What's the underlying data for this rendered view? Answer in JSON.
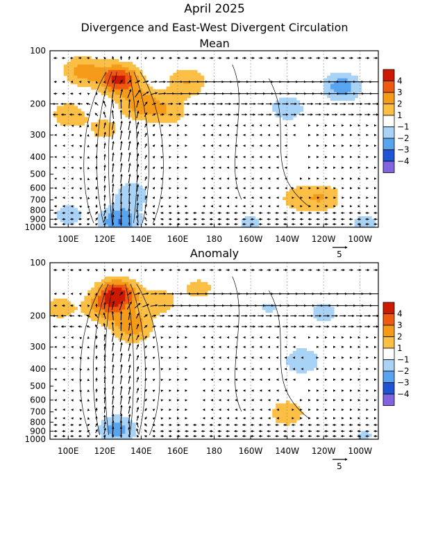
{
  "header": {
    "title": "April 2025",
    "subtitle": "Divergence and East-West Divergent Circulation"
  },
  "colorbar": {
    "labels": [
      "4",
      "3",
      "2",
      "1",
      "−1",
      "−2",
      "−3",
      "−4"
    ],
    "colors": [
      "#cc1a00",
      "#ee5a10",
      "#f59b1a",
      "#fbbf45",
      "#ffffff",
      "#a8d3f7",
      "#59a4ef",
      "#1d55d6",
      "#1a1aaa",
      "#7f66e0"
    ]
  },
  "vector_reference": {
    "label": "5"
  },
  "chart_data": [
    {
      "type": "contour",
      "title": "Mean",
      "x_tick_labels": [
        "100E",
        "120E",
        "140E",
        "160E",
        "180",
        "160W",
        "140W",
        "120W",
        "100W"
      ],
      "x_ticks_deg_east": [
        100,
        120,
        140,
        160,
        180,
        200,
        220,
        240,
        260
      ],
      "xlim_deg_east": [
        90,
        270
      ],
      "y_tick_labels": [
        "100",
        "200",
        "300",
        "400",
        "500",
        "600",
        "700",
        "800",
        "900",
        "1000"
      ],
      "y_ticks_hpa": [
        100,
        200,
        300,
        400,
        500,
        600,
        700,
        800,
        900,
        1000
      ],
      "ylim_hpa": [
        100,
        1000
      ],
      "y_scale": "log",
      "grid": "dotted vertical lines",
      "divergence_blobs": [
        {
          "lon": 128,
          "p": 145,
          "value": 4.3
        },
        {
          "lon": 108,
          "p": 130,
          "value": 2.4
        },
        {
          "lon": 140,
          "p": 200,
          "value": 2.6
        },
        {
          "lon": 165,
          "p": 150,
          "value": 2.0
        },
        {
          "lon": 100,
          "p": 230,
          "value": 1.6
        },
        {
          "lon": 155,
          "p": 220,
          "value": 1.6
        },
        {
          "lon": 120,
          "p": 280,
          "value": 1.3
        },
        {
          "lon": 250,
          "p": 160,
          "value": -2.6
        },
        {
          "lon": 220,
          "p": 210,
          "value": -1.7
        },
        {
          "lon": 240,
          "p": 680,
          "value": 1.8
        },
        {
          "lon": 225,
          "p": 690,
          "value": 1.4
        },
        {
          "lon": 135,
          "p": 650,
          "value": -1.6
        },
        {
          "lon": 128,
          "p": 930,
          "value": -3.0
        },
        {
          "lon": 100,
          "p": 850,
          "value": -1.4
        },
        {
          "lon": 200,
          "p": 950,
          "value": -1.2
        },
        {
          "lon": 262,
          "p": 950,
          "value": -1.3
        }
      ],
      "ascent_center_lon": 130,
      "ascent_strength": 1.0
    },
    {
      "type": "contour",
      "title": "Anomaly",
      "x_tick_labels": [
        "100E",
        "120E",
        "140E",
        "160E",
        "180",
        "160W",
        "140W",
        "120W",
        "100W"
      ],
      "x_ticks_deg_east": [
        100,
        120,
        140,
        160,
        180,
        200,
        220,
        240,
        260
      ],
      "xlim_deg_east": [
        90,
        270
      ],
      "y_tick_labels": [
        "100",
        "200",
        "300",
        "400",
        "500",
        "600",
        "700",
        "800",
        "900",
        "1000"
      ],
      "y_ticks_hpa": [
        100,
        200,
        300,
        400,
        500,
        600,
        700,
        800,
        900,
        1000
      ],
      "ylim_hpa": [
        100,
        1000
      ],
      "y_scale": "log",
      "grid": "dotted vertical lines",
      "divergence_blobs": [
        {
          "lon": 127,
          "p": 150,
          "value": 4.2
        },
        {
          "lon": 135,
          "p": 230,
          "value": 2.7
        },
        {
          "lon": 120,
          "p": 180,
          "value": 2.2
        },
        {
          "lon": 95,
          "p": 180,
          "value": 1.4
        },
        {
          "lon": 150,
          "p": 165,
          "value": 1.5
        },
        {
          "lon": 172,
          "p": 140,
          "value": 1.3
        },
        {
          "lon": 228,
          "p": 360,
          "value": -1.8
        },
        {
          "lon": 240,
          "p": 190,
          "value": -1.4
        },
        {
          "lon": 210,
          "p": 180,
          "value": -1.1
        },
        {
          "lon": 220,
          "p": 710,
          "value": 1.7
        },
        {
          "lon": 127,
          "p": 880,
          "value": -2.4
        },
        {
          "lon": 262,
          "p": 960,
          "value": -1.1
        }
      ],
      "ascent_center_lon": 128,
      "ascent_strength": 0.9
    }
  ]
}
